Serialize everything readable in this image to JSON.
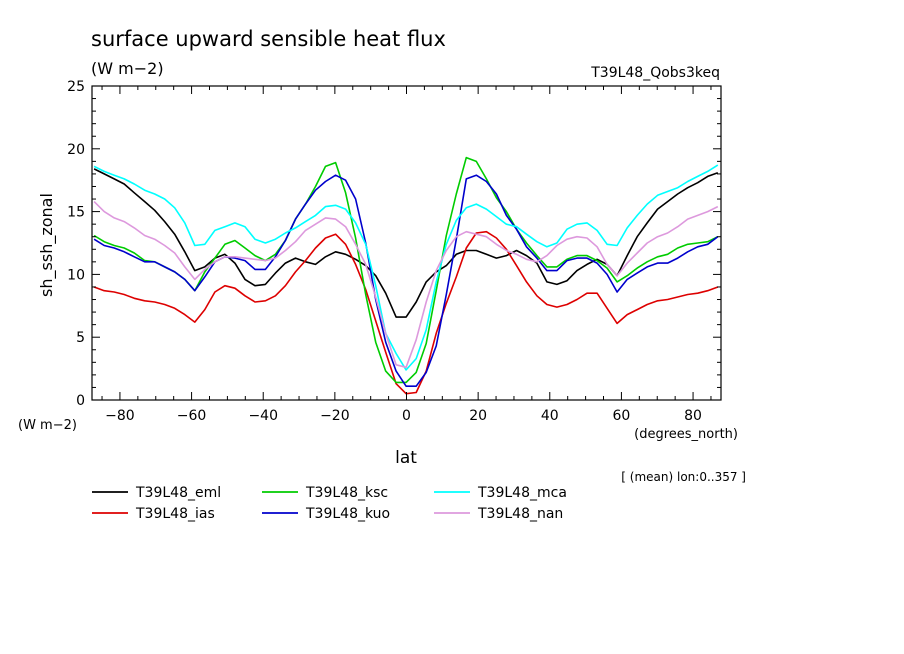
{
  "chart_data": {
    "type": "line",
    "title": "surface upward sensible heat flux",
    "subtitle": "(W m−2)",
    "run_label": "T39L48_Qobs3keq",
    "ylabel": "sh_ssh_zonal",
    "y_units": "(W m−2)",
    "xlabel": "lat",
    "x_units": "(degrees_north)",
    "note": "[ (mean) lon:0..357 ]",
    "xlim": [
      -87.8,
      87.8
    ],
    "ylim": [
      0,
      25
    ],
    "xticks": [
      -80,
      -60,
      -40,
      -20,
      0,
      20,
      40,
      60,
      80
    ],
    "yticks": [
      0,
      5,
      10,
      15,
      20,
      25
    ],
    "xtick_labels": [
      "−80",
      "−60",
      "−40",
      "−20",
      "0",
      "20",
      "40",
      "60",
      "80"
    ],
    "ytick_labels": [
      "0",
      "5",
      "10",
      "15",
      "20",
      "25"
    ],
    "grid": false,
    "legend_position": "bottom",
    "x": [
      -87.2,
      -84.4,
      -81.6,
      -78.8,
      -76.0,
      -73.1,
      -70.3,
      -67.5,
      -64.7,
      -61.9,
      -59.1,
      -56.3,
      -53.5,
      -50.7,
      -47.9,
      -45.1,
      -42.3,
      -39.4,
      -36.6,
      -33.8,
      -31.0,
      -28.2,
      -25.4,
      -22.6,
      -19.8,
      -17.0,
      -14.2,
      -11.4,
      -8.6,
      -5.8,
      -2.9,
      -0.1,
      2.7,
      5.5,
      8.3,
      11.1,
      13.9,
      16.7,
      19.5,
      22.3,
      25.1,
      27.9,
      30.7,
      33.5,
      36.4,
      39.2,
      42.0,
      44.8,
      47.6,
      50.4,
      53.2,
      56.0,
      58.8,
      61.6,
      64.4,
      67.2,
      70.1,
      72.9,
      75.7,
      78.5,
      81.3,
      84.1,
      86.9
    ],
    "series": [
      {
        "name": "T39L48_eml",
        "color": "#000000",
        "values": [
          18.4,
          18.0,
          17.6,
          17.2,
          16.5,
          15.8,
          15.1,
          14.2,
          13.2,
          11.8,
          10.3,
          10.6,
          11.3,
          11.6,
          10.9,
          9.6,
          9.1,
          9.2,
          10.1,
          10.9,
          11.3,
          11.0,
          10.8,
          11.4,
          11.8,
          11.6,
          11.2,
          10.7,
          9.9,
          8.5,
          6.6,
          6.6,
          7.8,
          9.4,
          10.2,
          10.7,
          11.6,
          11.9,
          11.9,
          11.6,
          11.3,
          11.5,
          11.9,
          11.5,
          10.9,
          9.4,
          9.2,
          9.5,
          10.3,
          10.8,
          11.2,
          10.8,
          9.9,
          11.5,
          13.0,
          14.1,
          15.2,
          15.8,
          16.4,
          16.9,
          17.3,
          17.8,
          18.1
        ]
      },
      {
        "name": "T39L48_ias",
        "color": "#dd0000",
        "values": [
          9.0,
          8.7,
          8.6,
          8.4,
          8.1,
          7.9,
          7.8,
          7.6,
          7.3,
          6.8,
          6.2,
          7.2,
          8.6,
          9.1,
          8.9,
          8.3,
          7.8,
          7.9,
          8.3,
          9.1,
          10.2,
          11.1,
          12.1,
          12.9,
          13.2,
          12.4,
          10.8,
          8.8,
          6.3,
          3.8,
          1.3,
          0.5,
          0.6,
          2.3,
          5.3,
          7.7,
          9.8,
          12.1,
          13.3,
          13.4,
          12.9,
          12.0,
          10.7,
          9.4,
          8.3,
          7.6,
          7.4,
          7.6,
          8.0,
          8.5,
          8.5,
          7.3,
          6.1,
          6.8,
          7.2,
          7.6,
          7.9,
          8.0,
          8.2,
          8.4,
          8.5,
          8.7,
          9.0
        ]
      },
      {
        "name": "T39L48_ksc",
        "color": "#00cc00",
        "values": [
          13.1,
          12.6,
          12.3,
          12.1,
          11.7,
          11.1,
          11.0,
          10.6,
          10.2,
          9.6,
          8.7,
          10.2,
          11.3,
          12.4,
          12.7,
          12.1,
          11.5,
          11.1,
          11.6,
          12.7,
          14.4,
          15.6,
          17.0,
          18.6,
          18.9,
          16.5,
          12.9,
          8.4,
          4.6,
          2.3,
          1.4,
          1.4,
          2.2,
          4.5,
          8.7,
          13.1,
          16.4,
          19.3,
          19.0,
          17.6,
          16.1,
          15.0,
          13.6,
          12.5,
          11.5,
          10.6,
          10.6,
          11.2,
          11.5,
          11.5,
          11.1,
          10.5,
          9.4,
          9.9,
          10.5,
          11.0,
          11.4,
          11.6,
          12.1,
          12.4,
          12.5,
          12.6,
          13.0
        ]
      },
      {
        "name": "T39L48_kuo",
        "color": "#0000cc",
        "values": [
          12.8,
          12.3,
          12.1,
          11.8,
          11.4,
          11.0,
          11.0,
          10.6,
          10.2,
          9.6,
          8.7,
          9.8,
          11.0,
          11.4,
          11.3,
          11.1,
          10.4,
          10.4,
          11.4,
          12.7,
          14.4,
          15.6,
          16.7,
          17.4,
          17.9,
          17.5,
          16.0,
          12.5,
          8.0,
          4.6,
          2.3,
          1.1,
          1.1,
          2.2,
          4.3,
          8.4,
          12.8,
          17.6,
          17.9,
          17.4,
          16.4,
          14.7,
          13.6,
          12.2,
          11.3,
          10.3,
          10.3,
          11.1,
          11.3,
          11.3,
          10.9,
          10.0,
          8.6,
          9.6,
          10.1,
          10.6,
          10.9,
          10.9,
          11.3,
          11.8,
          12.2,
          12.4,
          13.0
        ]
      },
      {
        "name": "T39L48_mca",
        "color": "#00ffff",
        "values": [
          18.6,
          18.2,
          17.9,
          17.6,
          17.2,
          16.7,
          16.4,
          16.0,
          15.3,
          14.1,
          12.3,
          12.4,
          13.5,
          13.8,
          14.1,
          13.8,
          12.8,
          12.5,
          12.8,
          13.3,
          13.7,
          14.2,
          14.7,
          15.4,
          15.5,
          15.2,
          14.1,
          12.4,
          9.1,
          5.3,
          3.7,
          2.4,
          3.3,
          5.6,
          9.4,
          12.4,
          14.3,
          15.3,
          15.6,
          15.2,
          14.6,
          14.0,
          13.8,
          13.2,
          12.6,
          12.2,
          12.5,
          13.6,
          14.0,
          14.1,
          13.5,
          12.4,
          12.3,
          13.7,
          14.7,
          15.6,
          16.3,
          16.6,
          16.9,
          17.4,
          17.8,
          18.2,
          18.7
        ]
      },
      {
        "name": "T39L48_nan",
        "color": "#dd99dd",
        "values": [
          15.8,
          15.0,
          14.5,
          14.2,
          13.7,
          13.1,
          12.8,
          12.3,
          11.7,
          10.6,
          9.6,
          10.4,
          11.0,
          11.4,
          11.4,
          11.3,
          11.2,
          11.1,
          11.3,
          11.9,
          12.6,
          13.5,
          14.0,
          14.5,
          14.4,
          13.8,
          12.4,
          10.8,
          8.2,
          5.3,
          2.8,
          2.6,
          4.8,
          7.8,
          10.3,
          11.9,
          13.0,
          13.4,
          13.2,
          13.0,
          12.4,
          11.9,
          11.6,
          11.2,
          11.0,
          11.5,
          12.3,
          12.8,
          13.0,
          12.9,
          12.2,
          10.8,
          9.9,
          10.9,
          11.7,
          12.5,
          13.0,
          13.3,
          13.8,
          14.4,
          14.7,
          15.0,
          15.4
        ]
      }
    ]
  }
}
